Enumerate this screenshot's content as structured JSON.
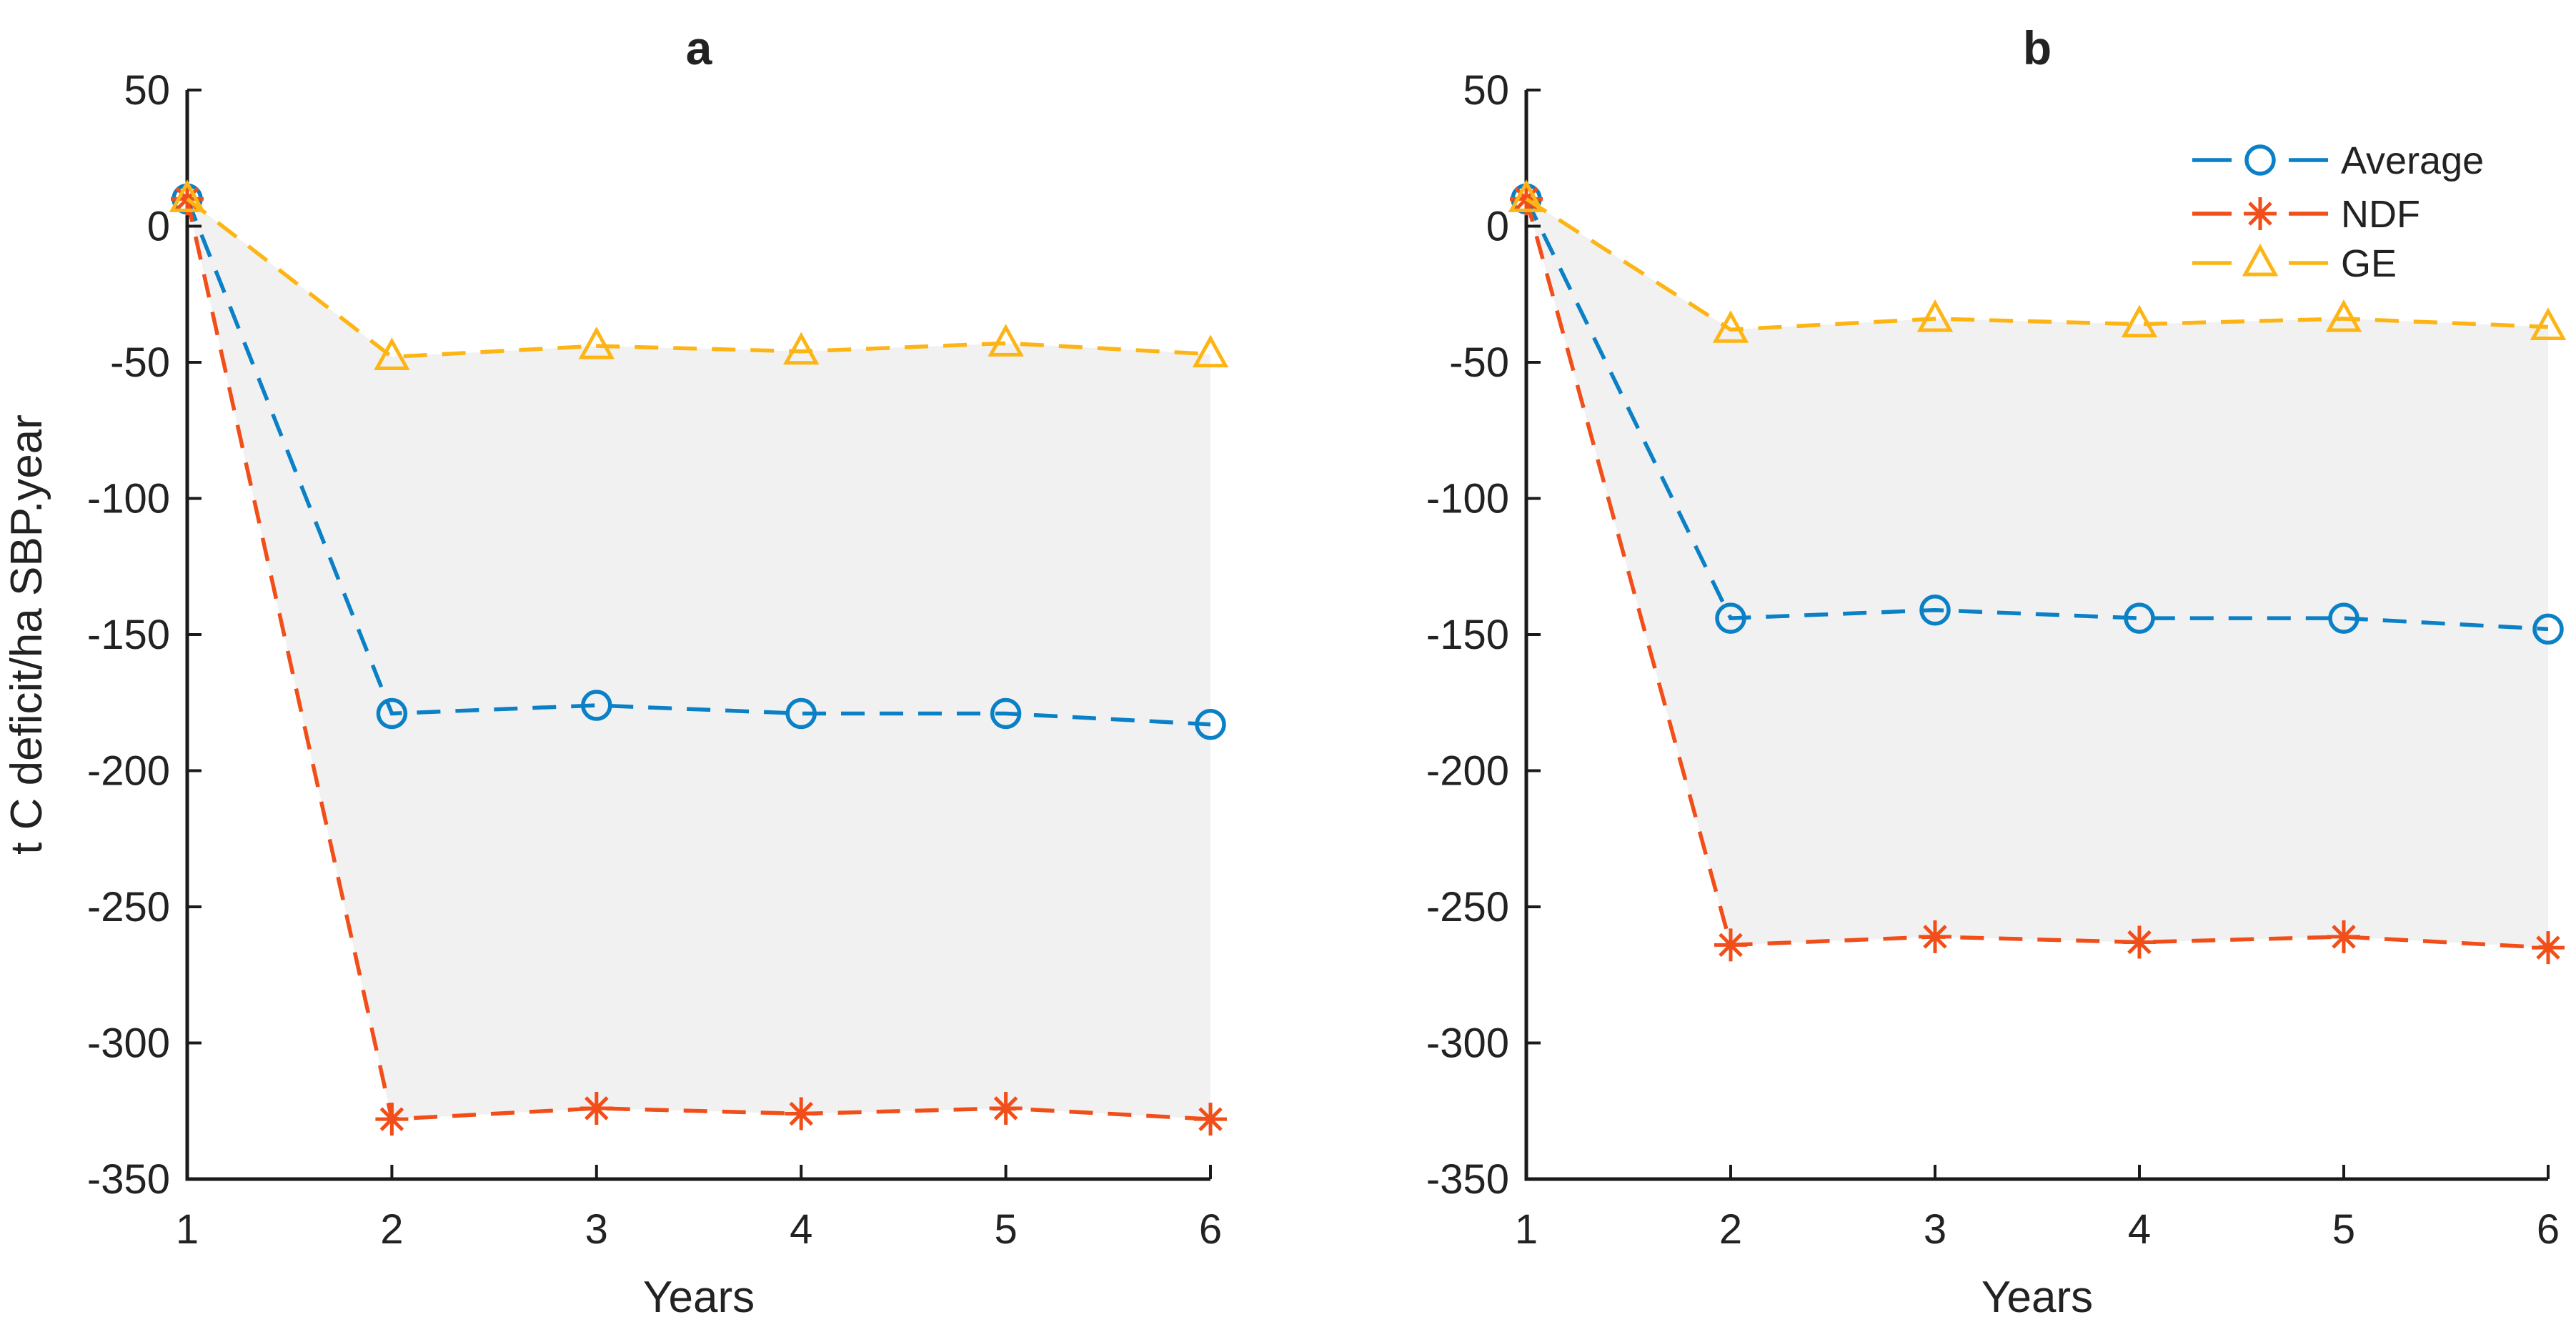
{
  "figure": {
    "background": "#ffffff",
    "axis_color": "#1a1a1a",
    "text_color": "#222222",
    "band_color": "#f1f1f1",
    "xlabel": "Years",
    "ylabel": "t C deficit/ha SBP.year",
    "legend": {
      "position": "top-right-of-panel-b",
      "items": [
        {
          "label": "Average",
          "marker": "circle",
          "color": "#0a80c6"
        },
        {
          "label": "NDF",
          "marker": "asterisk",
          "color": "#f14e19"
        },
        {
          "label": "GE",
          "marker": "triangle",
          "color": "#fdb515"
        }
      ]
    }
  },
  "chart_data": [
    {
      "type": "line",
      "title": "a",
      "xlabel": "Years",
      "ylabel": "t C deficit/ha SBP.year",
      "x": [
        1,
        2,
        3,
        4,
        5,
        6
      ],
      "xlim": [
        1,
        6
      ],
      "ylim": [
        -350,
        50
      ],
      "xticks": [
        1,
        2,
        3,
        4,
        5,
        6
      ],
      "yticks": [
        50,
        0,
        -50,
        -100,
        -150,
        -200,
        -250,
        -300,
        -350
      ],
      "grid": false,
      "line_style": "dashed",
      "series": [
        {
          "name": "Average",
          "marker": "circle",
          "color": "#0a80c6",
          "values": [
            10,
            -179,
            -176,
            -179,
            -179,
            -183
          ]
        },
        {
          "name": "NDF",
          "marker": "asterisk",
          "color": "#f14e19",
          "values": [
            10,
            -328,
            -324,
            -326,
            -324,
            -328
          ]
        },
        {
          "name": "GE",
          "marker": "triangle",
          "color": "#fdb515",
          "values": [
            10,
            -48,
            -44,
            -46,
            -43,
            -47
          ]
        }
      ],
      "band": {
        "between": [
          "GE",
          "NDF"
        ],
        "color": "#f1f1f1"
      },
      "show_legend": false
    },
    {
      "type": "line",
      "title": "b",
      "xlabel": "Years",
      "ylabel": "",
      "x": [
        1,
        2,
        3,
        4,
        5,
        6
      ],
      "xlim": [
        1,
        6
      ],
      "ylim": [
        -350,
        50
      ],
      "xticks": [
        1,
        2,
        3,
        4,
        5,
        6
      ],
      "yticks": [
        50,
        0,
        -50,
        -100,
        -150,
        -200,
        -250,
        -300,
        -350
      ],
      "grid": false,
      "line_style": "dashed",
      "series": [
        {
          "name": "Average",
          "marker": "circle",
          "color": "#0a80c6",
          "values": [
            10,
            -144,
            -141,
            -144,
            -144,
            -148
          ]
        },
        {
          "name": "NDF",
          "marker": "asterisk",
          "color": "#f14e19",
          "values": [
            10,
            -264,
            -261,
            -263,
            -261,
            -265
          ]
        },
        {
          "name": "GE",
          "marker": "triangle",
          "color": "#fdb515",
          "values": [
            10,
            -38,
            -34,
            -36,
            -34,
            -37
          ]
        }
      ],
      "band": {
        "between": [
          "GE",
          "NDF"
        ],
        "color": "#f1f1f1"
      },
      "show_legend": true
    }
  ]
}
